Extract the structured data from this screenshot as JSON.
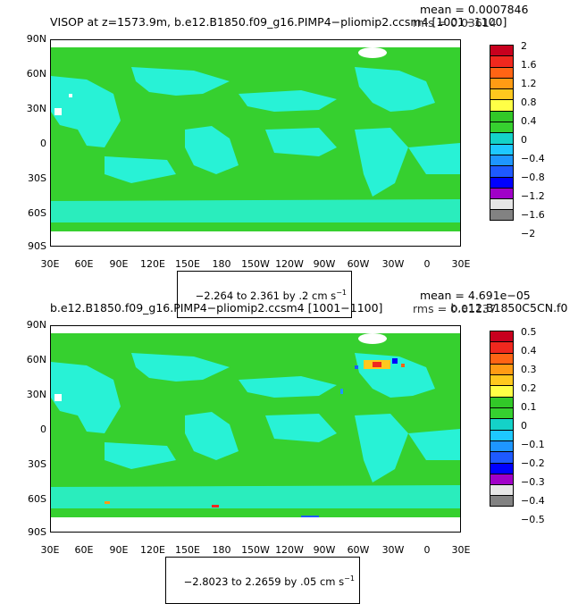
{
  "panel1": {
    "title": "VISOP at z=1573.9m, b.e12.B1850.f09_g16.PIMP4−pliomip2.ccsm4 [1001−1100]",
    "mean": "mean = 0.0007846",
    "rms": "rms = 0.03614",
    "range": "−2.264 to 2.361 by .2 cm s",
    "range_sup": "−1",
    "colorbar_labels": [
      "2",
      "1.6",
      "1.2",
      "0.8",
      "0.4",
      "0",
      "−0.4",
      "−0.8",
      "−1.2",
      "−1.6",
      "−2"
    ]
  },
  "panel2": {
    "title": "b.e12.B1850.f09_g16.PIMP4−pliomip2.ccsm4 [1001−1100]",
    "subtitle": "− b.e12.B1850C5CN.f0",
    "mean": "mean = 4.691e−05",
    "rms": "rms = 0.01137",
    "range": "−2.8023 to 2.2659 by .05 cm s",
    "range_sup": "−1",
    "colorbar_labels": [
      "0.5",
      "0.4",
      "0.3",
      "0.2",
      "0.1",
      "0",
      "−0.1",
      "−0.2",
      "−0.3",
      "−0.4",
      "−0.5"
    ]
  },
  "lat_labels": [
    "90N",
    "60N",
    "30N",
    "0",
    "30S",
    "60S",
    "90S"
  ],
  "lon_labels": [
    "30E",
    "60E",
    "90E",
    "120E",
    "150E",
    "180",
    "150W",
    "120W",
    "90W",
    "60W",
    "30W",
    "0",
    "30E"
  ],
  "colors": {
    "ocean_green": "#36d02f",
    "cyan": "#28f2d6",
    "land_cyan": "#27ecd3",
    "no_data": "#ffffff",
    "scale": [
      "#c8001e",
      "#f0281e",
      "#ff6414",
      "#ff9b14",
      "#ffc81e",
      "#ffff46",
      "#32c828",
      "#14d2c8",
      "#1ec8ff",
      "#1e96ff",
      "#1e5aff",
      "#0000ff",
      "#a000c8",
      "#e600e6",
      "#e6e6e6",
      "#828282"
    ]
  }
}
